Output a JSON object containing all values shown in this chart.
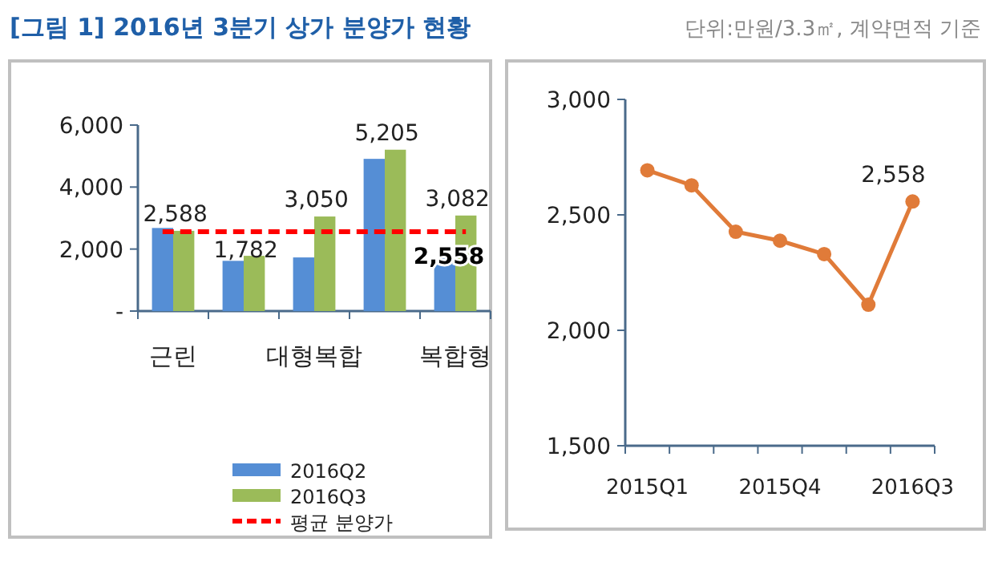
{
  "chart_data": [
    {
      "type": "bar",
      "title": "[그림 1] 2016년 3분기 상가 분양가 현황",
      "annotations": [
        "단위:만원/3.3㎡, 계약면적 기준",
        {
          "text": "2,558",
          "x": "복합형",
          "y": 2558
        }
      ],
      "categories": [
        "근린",
        null,
        "대형복합",
        null,
        "복합형"
      ],
      "series": [
        {
          "name": "2016Q2",
          "color": "#558ed5",
          "values": [
            2680,
            1620,
            1730,
            4910,
            1700
          ]
        },
        {
          "name": "2016Q3",
          "color": "#9bbb59",
          "values": [
            2588,
            1782,
            3050,
            5205,
            3082
          ],
          "value_labels": [
            "2,588",
            "1,782",
            "3,050",
            "5,205",
            "3,082"
          ]
        }
      ],
      "ref_lines": [
        {
          "axis": "y",
          "value": 2558,
          "label": "평균 분양가",
          "color": "#ff0000",
          "line_style": "dashed"
        }
      ],
      "ylim": [
        0,
        6000
      ],
      "yticks": [
        {
          "value": 0,
          "label": "-"
        },
        {
          "value": 2000,
          "label": "2,000"
        },
        {
          "value": 4000,
          "label": "4,000"
        },
        {
          "value": 6000,
          "label": "6,000"
        }
      ],
      "legend": "bottom"
    },
    {
      "type": "line",
      "categories": [
        "2015Q1",
        null,
        null,
        "2015Q4",
        null,
        null,
        "2016Q3"
      ],
      "series": [
        {
          "color": "#e07b39",
          "values": [
            2693,
            2628,
            2427,
            2388,
            2330,
            2111,
            2558
          ],
          "value_labels": [
            null,
            null,
            null,
            null,
            null,
            null,
            "2,558"
          ]
        }
      ],
      "marker": "circle",
      "ylim": [
        1500,
        3000
      ],
      "yticks": [
        {
          "value": 1500,
          "label": "1,500"
        },
        {
          "value": 2000,
          "label": "2,000"
        },
        {
          "value": 2500,
          "label": "2,500"
        },
        {
          "value": 3000,
          "label": "3,000"
        }
      ]
    }
  ]
}
